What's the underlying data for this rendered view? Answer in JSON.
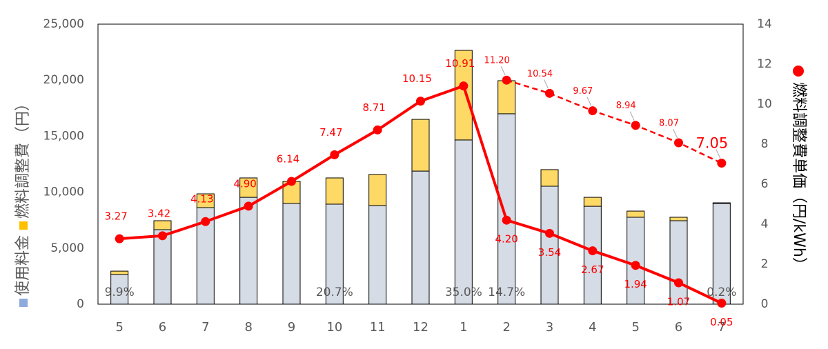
{
  "chart_data": {
    "type": "combo",
    "categories": [
      "5",
      "6",
      "7",
      "8",
      "9",
      "10",
      "11",
      "12",
      "1",
      "2",
      "3",
      "4",
      "5",
      "6",
      "7"
    ],
    "series": [
      {
        "name": "使用料金",
        "type": "bar",
        "color": "#d6dce5",
        "legend_color": "#8faadc",
        "values": [
          2650,
          6650,
          8620,
          9540,
          8990,
          8930,
          8800,
          11880,
          14660,
          17000,
          10530,
          8740,
          7760,
          7450,
          8990
        ]
      },
      {
        "name": "燃料調整費",
        "type": "bar",
        "color": "#ffd966",
        "legend_color": "#ffc000",
        "values": [
          300,
          800,
          1230,
          1730,
          1970,
          2340,
          2780,
          4620,
          8000,
          2950,
          1480,
          800,
          550,
          310,
          60
        ]
      },
      {
        "name": "燃料調整費単価",
        "type": "line",
        "axis": "y2",
        "color": "#ff0000",
        "line_style": "solid",
        "values": [
          3.27,
          3.42,
          4.13,
          4.9,
          6.14,
          7.47,
          8.71,
          10.15,
          10.91,
          4.2,
          3.54,
          2.67,
          1.94,
          1.07,
          0.05
        ],
        "value_labels": [
          "3.27",
          "3.42",
          "4.13",
          "4.90",
          "6.14",
          "7.47",
          "8.71",
          "10.15",
          "10.91",
          "4.20",
          "3.54",
          "2.67",
          "1.94",
          "1.07",
          "0.05"
        ]
      },
      {
        "type": "line",
        "axis": "y2",
        "color": "#ff0000",
        "line_style": "dashed",
        "values": [
          null,
          null,
          null,
          null,
          null,
          null,
          null,
          null,
          null,
          11.2,
          10.54,
          9.67,
          8.94,
          8.07,
          7.05
        ],
        "value_labels": [
          null,
          null,
          null,
          null,
          null,
          null,
          null,
          null,
          null,
          "11.20",
          "10.54",
          "9.67",
          "8.94",
          "8.07",
          "7.05"
        ]
      }
    ],
    "percent_labels": [
      "9.9%",
      null,
      null,
      null,
      null,
      "20.7%",
      null,
      null,
      "35.0%",
      "14.7%",
      null,
      null,
      null,
      null,
      "0.2%"
    ],
    "y_label": "（円）",
    "y2_label": "（円/kWh）",
    "ylim": [
      0,
      25000
    ],
    "yticks": [
      0,
      {
        "value": 5000,
        "label": "5,000"
      },
      {
        "value": 10000,
        "label": "10,000"
      },
      {
        "value": 15000,
        "label": "15,000"
      },
      {
        "value": 20000,
        "label": "20,000"
      },
      {
        "value": 25000,
        "label": "25,000"
      }
    ],
    "y2lim": [
      0,
      14
    ],
    "y2ticks": [
      0,
      2,
      4,
      6,
      8,
      10,
      12,
      14
    ]
  }
}
